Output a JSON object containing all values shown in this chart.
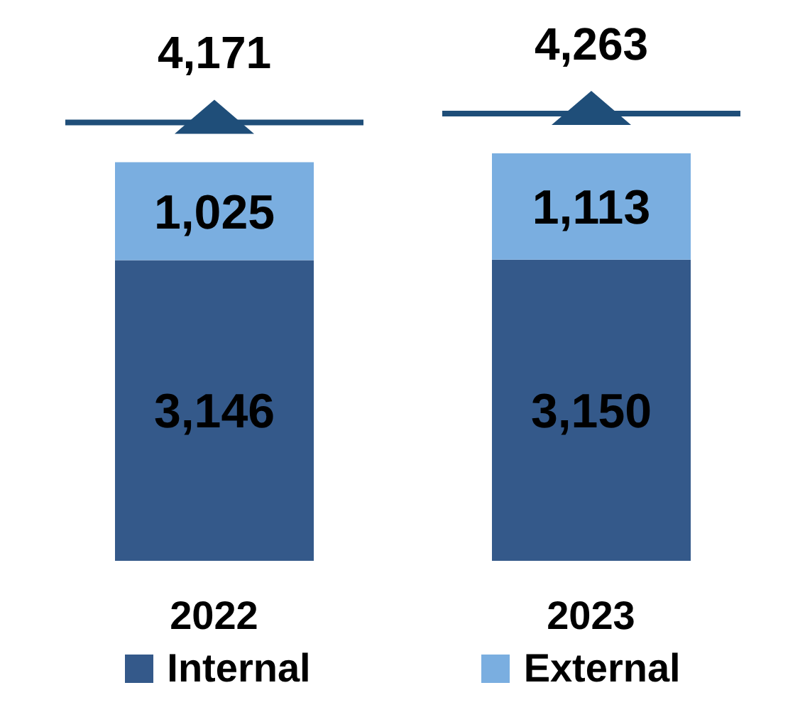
{
  "chart_data": {
    "type": "bar",
    "categories": [
      "2022",
      "2023"
    ],
    "stacked": true,
    "series": [
      {
        "name": "Internal",
        "color": "#34598a",
        "values": [
          3146,
          3150
        ],
        "value_labels": [
          "3,146",
          "3,150"
        ]
      },
      {
        "name": "External",
        "color": "#7aaee0",
        "values": [
          1025,
          1113
        ],
        "value_labels": [
          "1,025",
          "1,113"
        ]
      }
    ],
    "totals": [
      "4,171",
      "4,263"
    ],
    "legend": "bottom"
  }
}
